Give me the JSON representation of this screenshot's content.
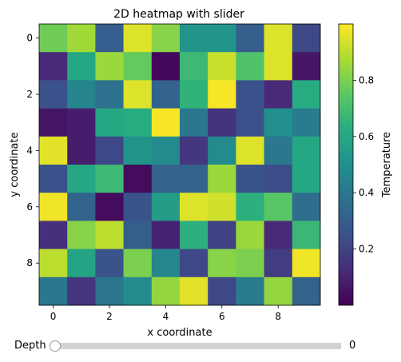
{
  "chart_data": {
    "type": "heatmap",
    "title": "2D heatmap with slider",
    "xlabel": "x coordinate",
    "ylabel": "y coordinate",
    "colorbar_label": "Temperature",
    "colormap": "viridis",
    "xlim": [
      -0.5,
      9.5
    ],
    "ylim": [
      9.5,
      -0.5
    ],
    "x_ticks": [
      0,
      2,
      4,
      6,
      8
    ],
    "y_ticks": [
      0,
      2,
      4,
      6,
      8
    ],
    "colorbar_range": [
      0.0,
      1.0
    ],
    "colorbar_ticks": [
      0.2,
      0.4,
      0.6,
      0.8
    ],
    "values": [
      [
        0.78,
        0.86,
        0.3,
        0.95,
        0.82,
        0.52,
        0.52,
        0.3,
        0.95,
        0.22
      ],
      [
        0.12,
        0.6,
        0.85,
        0.76,
        0.02,
        0.68,
        0.92,
        0.72,
        0.95,
        0.06
      ],
      [
        0.25,
        0.45,
        0.38,
        0.95,
        0.32,
        0.65,
        0.99,
        0.25,
        0.12,
        0.62
      ],
      [
        0.06,
        0.08,
        0.6,
        0.62,
        0.99,
        0.4,
        0.15,
        0.25,
        0.5,
        0.42
      ],
      [
        0.96,
        0.08,
        0.22,
        0.52,
        0.48,
        0.16,
        0.48,
        0.95,
        0.4,
        0.6
      ],
      [
        0.25,
        0.6,
        0.68,
        0.03,
        0.32,
        0.32,
        0.85,
        0.26,
        0.24,
        0.6
      ],
      [
        0.98,
        0.32,
        0.03,
        0.26,
        0.55,
        0.95,
        0.93,
        0.64,
        0.74,
        0.36
      ],
      [
        0.14,
        0.82,
        0.9,
        0.3,
        0.1,
        0.64,
        0.2,
        0.85,
        0.12,
        0.67
      ],
      [
        0.9,
        0.58,
        0.26,
        0.8,
        0.46,
        0.22,
        0.82,
        0.8,
        0.18,
        0.98
      ],
      [
        0.4,
        0.16,
        0.39,
        0.48,
        0.84,
        0.96,
        0.22,
        0.42,
        0.84,
        0.32
      ]
    ]
  },
  "slider": {
    "label": "Depth",
    "value": "0",
    "position_fraction": 0.0
  }
}
